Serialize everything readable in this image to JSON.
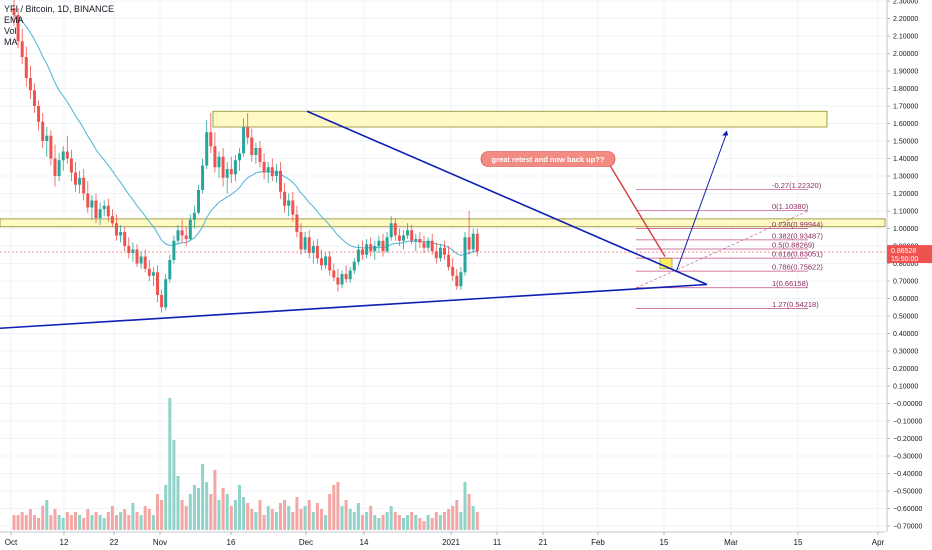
{
  "legend": {
    "symbol_line": "YFI / Bitcoin, 1D, BINANCE",
    "ema_label": "EMA",
    "vol_label": "Vol",
    "ma_label": "MA"
  },
  "price_tag": {
    "value": "0.86528",
    "countdown": "15:50:00"
  },
  "annotation": {
    "text": "great retest and now back up??"
  },
  "colors": {
    "up": "#26a69a",
    "down": "#ef5350",
    "up_vol": "#8fd3c9",
    "down_vol": "#f4a6a4",
    "ema": "#4fb3d6",
    "trendline": "#0d1fb4",
    "zone_fill": "#fff9c4",
    "zone_stroke": "#8a8a2b",
    "fib": "#c44b85",
    "callout": "#f28b82",
    "price_tag": "#ef5350"
  },
  "chart_data": {
    "type": "candlestick",
    "x_ticks": [
      "Oct",
      "12",
      "22",
      "Nov",
      "16",
      "Dec",
      "14",
      "2021",
      "11",
      "21",
      "Feb",
      "15",
      "Mar",
      "15",
      "Apr"
    ],
    "y_ticks": [
      "2.30000",
      "2.20000",
      "2.10000",
      "2.00000",
      "1.90000",
      "1.80000",
      "1.70000",
      "1.60000",
      "1.50000",
      "1.40000",
      "1.30000",
      "1.20000",
      "1.10000",
      "1.00000",
      "0.90000",
      "0.80000",
      "0.70000",
      "0.60000",
      "0.50000",
      "0.40000",
      "0.30000",
      "0.20000",
      "0.10000",
      "−0.00000",
      "−0.10000",
      "−0.20000",
      "−0.30000",
      "−0.40000",
      "−0.50000",
      "−0.60000",
      "−0.70000"
    ],
    "ylim": [
      -0.75,
      2.34
    ],
    "fib_levels": [
      {
        "label": "-0.27(1.22320)",
        "value": 1.2232
      },
      {
        "label": "0(1.10380)",
        "value": 1.1038
      },
      {
        "label": "0.236(0.99944)",
        "value": 0.99944
      },
      {
        "label": "0.382(0.93487)",
        "value": 0.93487
      },
      {
        "label": "0.5(0.88269)",
        "value": 0.88269
      },
      {
        "label": "0.618(0.83051)",
        "value": 0.83051
      },
      {
        "label": "0.786(0.75622)",
        "value": 0.75622
      },
      {
        "label": "1(0.66158)",
        "value": 0.66158
      },
      {
        "label": "1.27(0.54218)",
        "value": 0.54218
      }
    ],
    "candles": [
      [
        2.26,
        2.33,
        2.16,
        2.22
      ],
      [
        2.22,
        2.26,
        2.03,
        2.07
      ],
      [
        2.07,
        2.14,
        1.94,
        1.98
      ],
      [
        1.98,
        2.04,
        1.81,
        1.86
      ],
      [
        1.86,
        1.93,
        1.74,
        1.79
      ],
      [
        1.79,
        1.83,
        1.66,
        1.7
      ],
      [
        1.7,
        1.73,
        1.56,
        1.61
      ],
      [
        1.61,
        1.66,
        1.46,
        1.5
      ],
      [
        1.5,
        1.58,
        1.41,
        1.53
      ],
      [
        1.53,
        1.56,
        1.36,
        1.4
      ],
      [
        1.4,
        1.48,
        1.24,
        1.3
      ],
      [
        1.3,
        1.43,
        1.27,
        1.39
      ],
      [
        1.39,
        1.47,
        1.33,
        1.44
      ],
      [
        1.44,
        1.53,
        1.37,
        1.4
      ],
      [
        1.4,
        1.45,
        1.27,
        1.32
      ],
      [
        1.32,
        1.38,
        1.21,
        1.25
      ],
      [
        1.25,
        1.33,
        1.2,
        1.29
      ],
      [
        1.29,
        1.34,
        1.16,
        1.2
      ],
      [
        1.2,
        1.27,
        1.09,
        1.12
      ],
      [
        1.12,
        1.19,
        1.05,
        1.16
      ],
      [
        1.16,
        1.2,
        1.03,
        1.06
      ],
      [
        1.06,
        1.15,
        1.02,
        1.11
      ],
      [
        1.11,
        1.16,
        1.07,
        1.13
      ],
      [
        1.13,
        1.17,
        1.04,
        1.07
      ],
      [
        1.07,
        1.11,
        1.01,
        1.03
      ],
      [
        1.03,
        1.08,
        0.93,
        0.96
      ],
      [
        0.96,
        1.02,
        0.92,
        0.98
      ],
      [
        0.98,
        1.01,
        0.87,
        0.9
      ],
      [
        0.9,
        0.95,
        0.83,
        0.86
      ],
      [
        0.86,
        0.92,
        0.81,
        0.88
      ],
      [
        0.88,
        0.91,
        0.78,
        0.8
      ],
      [
        0.8,
        0.87,
        0.77,
        0.84
      ],
      [
        0.84,
        0.88,
        0.75,
        0.77
      ],
      [
        0.77,
        0.82,
        0.7,
        0.73
      ],
      [
        0.73,
        0.78,
        0.67,
        0.75
      ],
      [
        0.75,
        0.79,
        0.58,
        0.62
      ],
      [
        0.62,
        0.65,
        0.52,
        0.55
      ],
      [
        0.55,
        0.74,
        0.53,
        0.71
      ],
      [
        0.71,
        0.85,
        0.69,
        0.82
      ],
      [
        0.82,
        0.96,
        0.8,
        0.93
      ],
      [
        0.93,
        1.02,
        0.91,
        0.99
      ],
      [
        0.99,
        1.05,
        0.92,
        0.96
      ],
      [
        0.96,
        1.01,
        0.9,
        0.94
      ],
      [
        0.94,
        1.08,
        0.93,
        1.05
      ],
      [
        1.05,
        1.13,
        1.0,
        1.09
      ],
      [
        1.09,
        1.25,
        1.08,
        1.22
      ],
      [
        1.22,
        1.4,
        1.2,
        1.36
      ],
      [
        1.36,
        1.62,
        1.34,
        1.55
      ],
      [
        1.55,
        1.66,
        1.43,
        1.47
      ],
      [
        1.47,
        1.55,
        1.32,
        1.35
      ],
      [
        1.35,
        1.44,
        1.29,
        1.41
      ],
      [
        1.41,
        1.46,
        1.24,
        1.29
      ],
      [
        1.29,
        1.38,
        1.2,
        1.34
      ],
      [
        1.34,
        1.41,
        1.26,
        1.31
      ],
      [
        1.31,
        1.42,
        1.27,
        1.39
      ],
      [
        1.39,
        1.46,
        1.33,
        1.43
      ],
      [
        1.43,
        1.63,
        1.41,
        1.58
      ],
      [
        1.58,
        1.66,
        1.48,
        1.52
      ],
      [
        1.52,
        1.57,
        1.38,
        1.42
      ],
      [
        1.42,
        1.49,
        1.37,
        1.46
      ],
      [
        1.46,
        1.5,
        1.35,
        1.38
      ],
      [
        1.38,
        1.43,
        1.28,
        1.32
      ],
      [
        1.32,
        1.38,
        1.26,
        1.35
      ],
      [
        1.35,
        1.4,
        1.27,
        1.3
      ],
      [
        1.3,
        1.37,
        1.26,
        1.33
      ],
      [
        1.33,
        1.38,
        1.17,
        1.21
      ],
      [
        1.21,
        1.26,
        1.09,
        1.13
      ],
      [
        1.13,
        1.2,
        1.07,
        1.16
      ],
      [
        1.16,
        1.21,
        1.04,
        1.08
      ],
      [
        1.08,
        1.13,
        0.95,
        0.98
      ],
      [
        0.98,
        1.03,
        0.85,
        0.88
      ],
      [
        0.88,
        0.98,
        0.86,
        0.95
      ],
      [
        0.95,
        0.99,
        0.83,
        0.86
      ],
      [
        0.86,
        0.93,
        0.8,
        0.9
      ],
      [
        0.9,
        0.94,
        0.8,
        0.83
      ],
      [
        0.83,
        0.88,
        0.76,
        0.79
      ],
      [
        0.79,
        0.86,
        0.77,
        0.84
      ],
      [
        0.84,
        0.87,
        0.73,
        0.76
      ],
      [
        0.76,
        0.8,
        0.7,
        0.72
      ],
      [
        0.72,
        0.77,
        0.64,
        0.68
      ],
      [
        0.68,
        0.76,
        0.66,
        0.74
      ],
      [
        0.74,
        0.79,
        0.69,
        0.71
      ],
      [
        0.71,
        0.78,
        0.69,
        0.76
      ],
      [
        0.76,
        0.83,
        0.74,
        0.81
      ],
      [
        0.81,
        0.91,
        0.79,
        0.88
      ],
      [
        0.88,
        0.93,
        0.82,
        0.85
      ],
      [
        0.85,
        0.94,
        0.83,
        0.91
      ],
      [
        0.91,
        0.95,
        0.84,
        0.87
      ],
      [
        0.87,
        0.93,
        0.82,
        0.9
      ],
      [
        0.9,
        0.96,
        0.86,
        0.93
      ],
      [
        0.93,
        0.97,
        0.84,
        0.87
      ],
      [
        0.87,
        0.98,
        0.86,
        0.95
      ],
      [
        0.95,
        1.07,
        0.93,
        1.03
      ],
      [
        1.03,
        1.06,
        0.93,
        0.96
      ],
      [
        0.96,
        1.0,
        0.9,
        0.93
      ],
      [
        0.93,
        0.99,
        0.88,
        0.96
      ],
      [
        0.96,
        1.03,
        0.94,
        0.99
      ],
      [
        0.99,
        1.02,
        0.91,
        0.93
      ],
      [
        0.93,
        0.97,
        0.87,
        0.94
      ],
      [
        0.94,
        0.98,
        0.89,
        0.92
      ],
      [
        0.92,
        0.96,
        0.86,
        0.89
      ],
      [
        0.89,
        0.95,
        0.87,
        0.93
      ],
      [
        0.93,
        0.97,
        0.85,
        0.87
      ],
      [
        0.87,
        0.92,
        0.8,
        0.83
      ],
      [
        0.83,
        0.91,
        0.81,
        0.89
      ],
      [
        0.89,
        0.93,
        0.82,
        0.85
      ],
      [
        0.85,
        0.9,
        0.76,
        0.78
      ],
      [
        0.78,
        0.83,
        0.7,
        0.73
      ],
      [
        0.73,
        0.77,
        0.65,
        0.67
      ],
      [
        0.67,
        0.78,
        0.65,
        0.75
      ],
      [
        0.75,
        0.98,
        0.73,
        0.95
      ],
      [
        0.95,
        1.1,
        0.85,
        0.88
      ],
      [
        0.88,
        1.0,
        0.86,
        0.97
      ],
      [
        0.97,
        1.0,
        0.84,
        0.87
      ]
    ],
    "volumes": [
      0.05,
      0.05,
      0.06,
      0.05,
      0.07,
      0.05,
      0.04,
      0.08,
      0.1,
      0.05,
      0.07,
      0.05,
      0.04,
      0.06,
      0.05,
      0.06,
      0.05,
      0.04,
      0.07,
      0.05,
      0.06,
      0.05,
      0.04,
      0.06,
      0.08,
      0.05,
      0.06,
      0.07,
      0.05,
      0.09,
      0.06,
      0.05,
      0.08,
      0.07,
      0.05,
      0.12,
      0.1,
      0.15,
      0.44,
      0.3,
      0.18,
      0.1,
      0.08,
      0.12,
      0.15,
      0.14,
      0.22,
      0.16,
      0.12,
      0.2,
      0.1,
      0.14,
      0.12,
      0.08,
      0.1,
      0.15,
      0.11,
      0.09,
      0.07,
      0.06,
      0.1,
      0.05,
      0.08,
      0.07,
      0.06,
      0.09,
      0.1,
      0.08,
      0.06,
      0.11,
      0.07,
      0.08,
      0.1,
      0.06,
      0.09,
      0.07,
      0.05,
      0.12,
      0.15,
      0.16,
      0.08,
      0.1,
      0.07,
      0.06,
      0.09,
      0.05,
      0.06,
      0.08,
      0.05,
      0.04,
      0.05,
      0.06,
      0.08,
      0.06,
      0.05,
      0.04,
      0.05,
      0.06,
      0.05,
      0.04,
      0.03,
      0.05,
      0.04,
      0.06,
      0.05,
      0.06,
      0.07,
      0.08,
      0.1,
      0.06,
      0.16,
      0.12,
      0.08,
      0.06
    ]
  }
}
